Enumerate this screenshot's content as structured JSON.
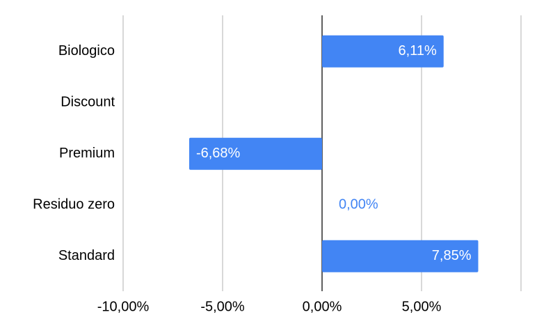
{
  "chart_data": {
    "type": "hbar",
    "categories": [
      "Biologico",
      "Discount",
      "Premium",
      "Residuo zero",
      "Standard"
    ],
    "values": [
      6.11,
      null,
      -6.68,
      0,
      7.85
    ],
    "value_labels": [
      "6,11%",
      null,
      "-6,68%",
      "0,00%",
      "7,85%"
    ],
    "color": "#4285f4",
    "xlim": [
      -10,
      10
    ],
    "xticks": [
      {
        "value": -10,
        "label": "-10,00%"
      },
      {
        "value": -5,
        "label": "-5,00%"
      },
      {
        "value": 0,
        "label": "0,00%"
      },
      {
        "value": 5,
        "label": "5,00%"
      },
      {
        "value": 10,
        "label": null
      }
    ],
    "grid": true
  }
}
